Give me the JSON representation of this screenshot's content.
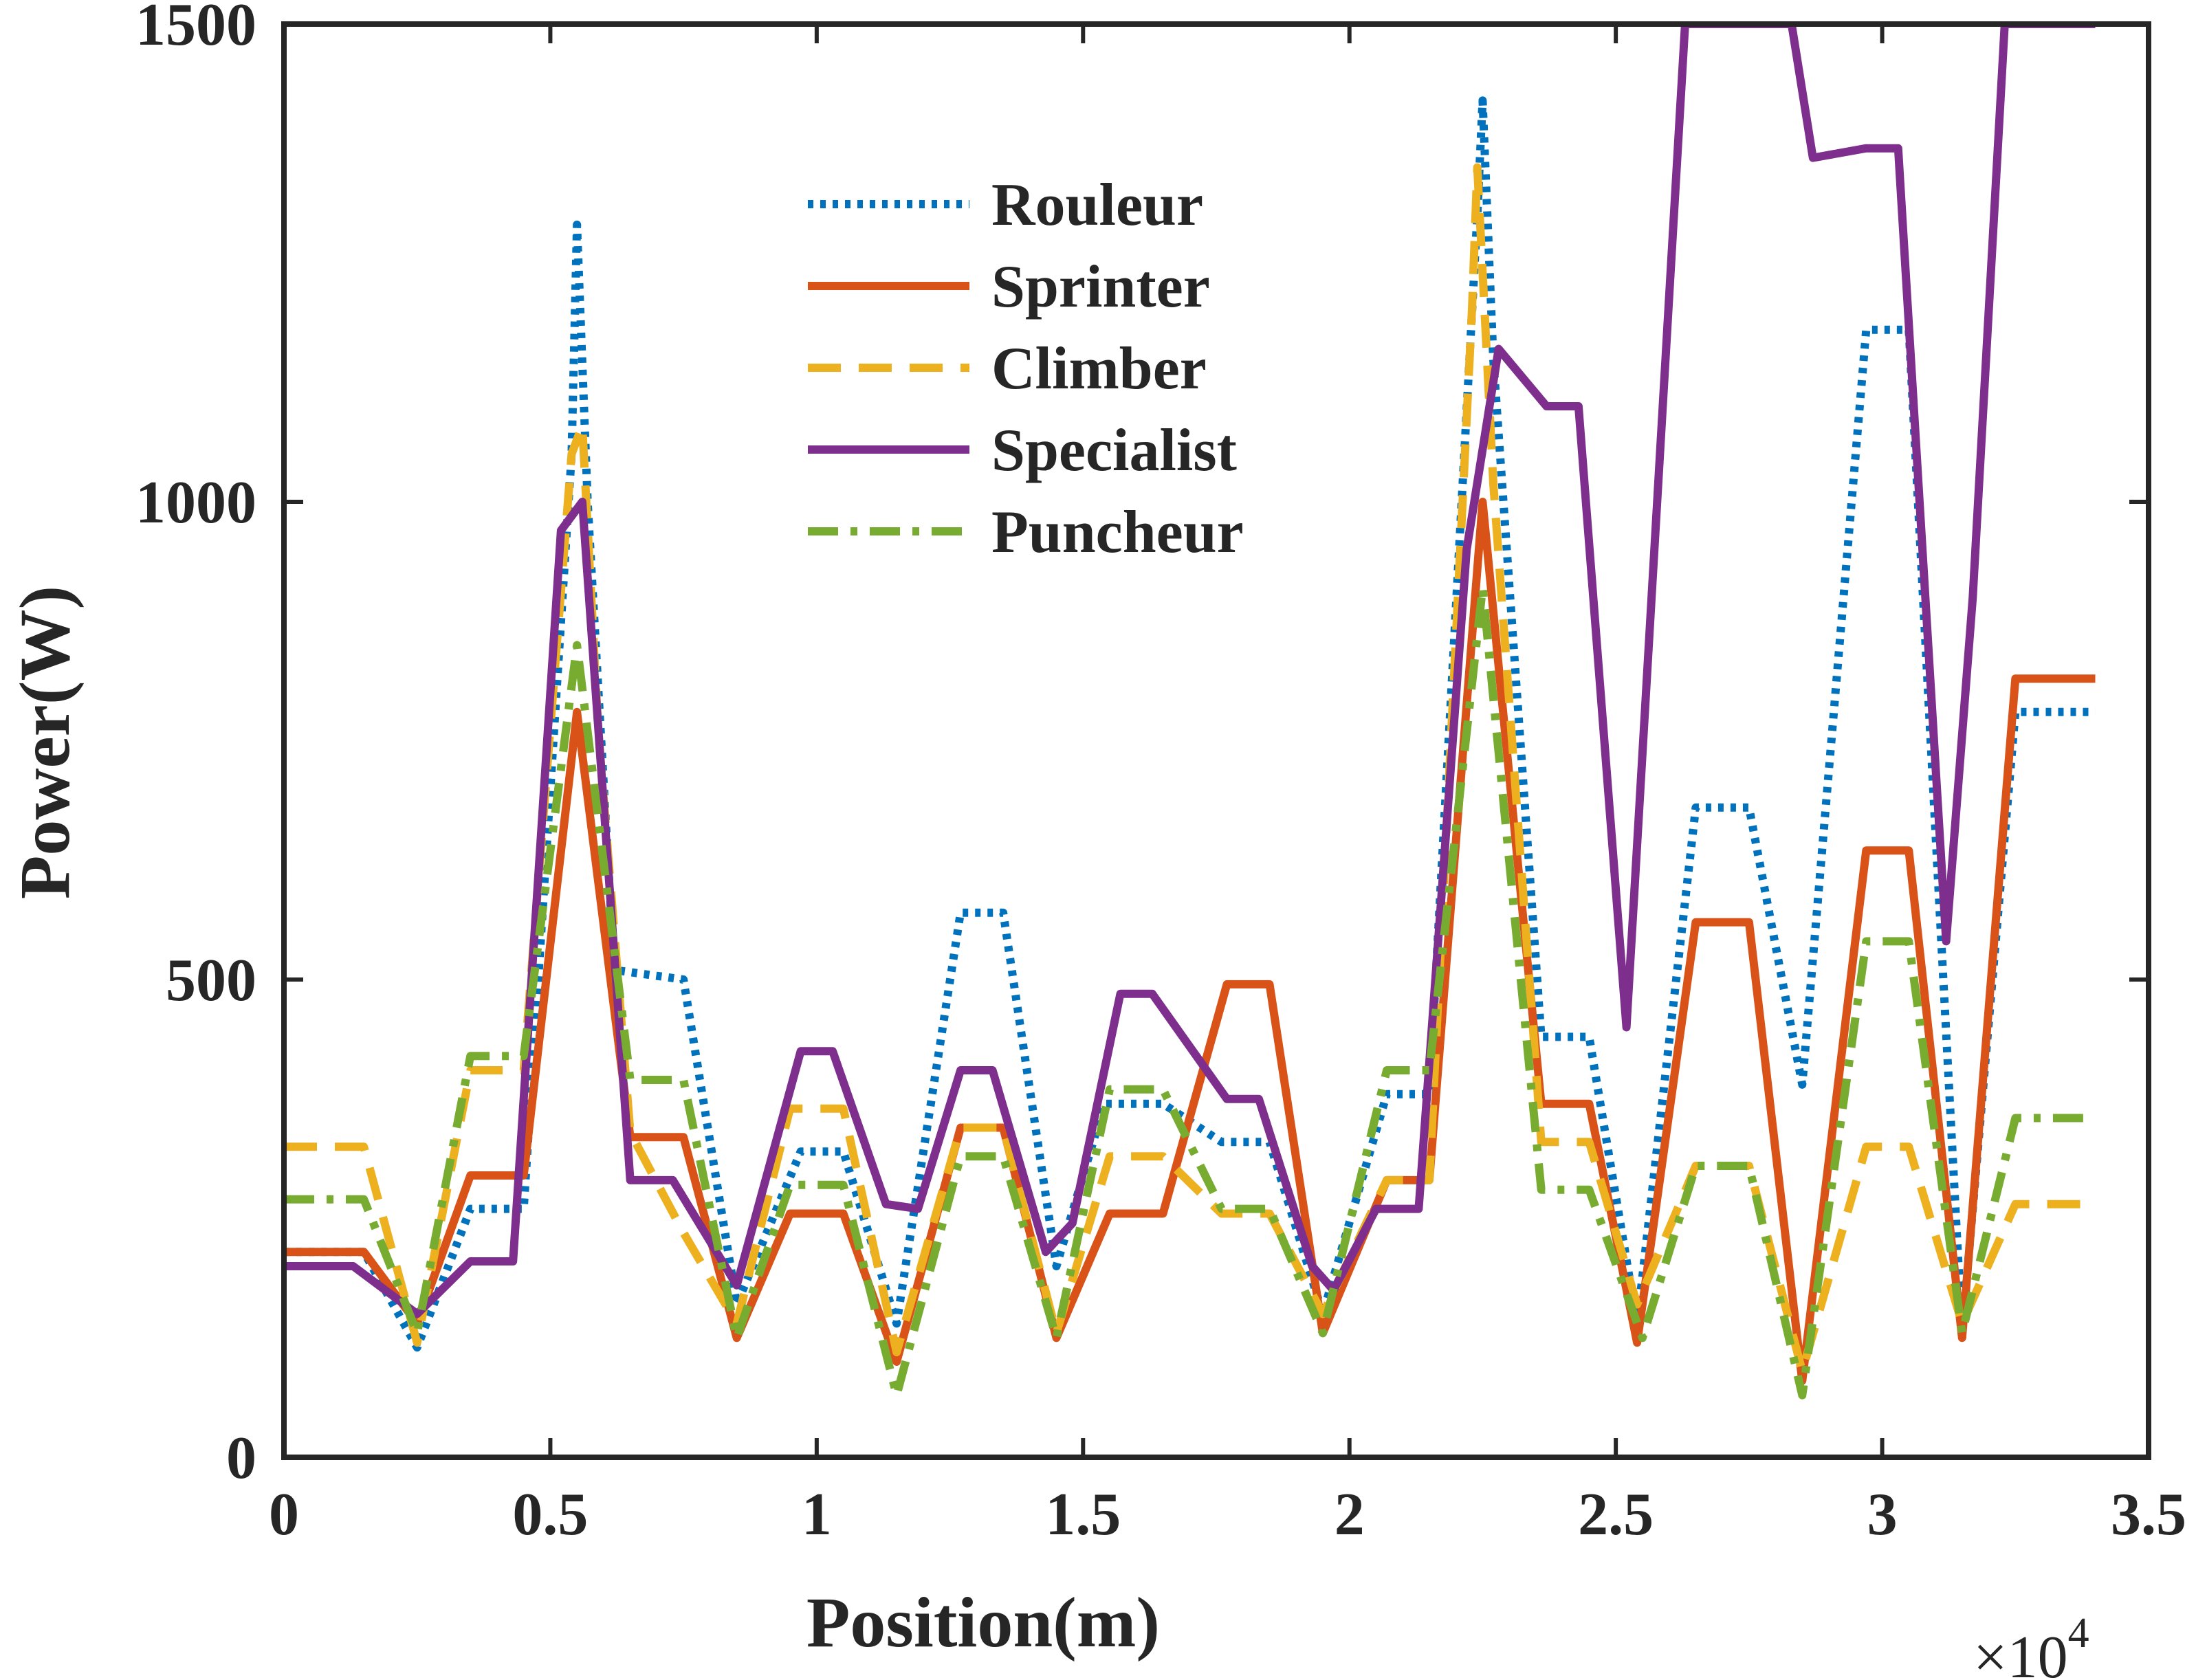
{
  "chart_data": {
    "type": "line",
    "xlabel": "Position(m)",
    "ylabel": "Power(W)",
    "x_multiplier_label": "×10",
    "x_multiplier_exponent": "4",
    "xlim": [
      0,
      35000
    ],
    "ylim": [
      0,
      1500
    ],
    "x_ticks": [
      0,
      5000,
      10000,
      15000,
      20000,
      25000,
      30000,
      35000
    ],
    "x_tick_labels": [
      "0",
      "0.5",
      "1",
      "1.5",
      "2",
      "2.5",
      "3",
      "3.5"
    ],
    "y_ticks": [
      0,
      500,
      1000,
      1500
    ],
    "y_tick_labels": [
      "0",
      "500",
      "1000",
      "1500"
    ],
    "grid": false,
    "legend_position": "top-center",
    "series": [
      {
        "name": "Rouleur",
        "color": "#0072BD",
        "style": "dotted",
        "points": [
          [
            0,
            215
          ],
          [
            1500,
            215
          ],
          [
            2500,
            115
          ],
          [
            3500,
            260
          ],
          [
            4500,
            260
          ],
          [
            5400,
            1050
          ],
          [
            5500,
            1290
          ],
          [
            5700,
            1000
          ],
          [
            6200,
            510
          ],
          [
            7500,
            500
          ],
          [
            8500,
            160
          ],
          [
            9700,
            320
          ],
          [
            10500,
            320
          ],
          [
            11500,
            140
          ],
          [
            12700,
            570
          ],
          [
            13500,
            570
          ],
          [
            14500,
            200
          ],
          [
            15400,
            370
          ],
          [
            16500,
            370
          ],
          [
            17600,
            330
          ],
          [
            18500,
            330
          ],
          [
            19500,
            150
          ],
          [
            20700,
            380
          ],
          [
            21500,
            380
          ],
          [
            22400,
            1300
          ],
          [
            22500,
            1420
          ],
          [
            22700,
            1150
          ],
          [
            23600,
            440
          ],
          [
            24500,
            440
          ],
          [
            25400,
            140
          ],
          [
            26500,
            680
          ],
          [
            27500,
            680
          ],
          [
            28500,
            390
          ],
          [
            29700,
            1180
          ],
          [
            30500,
            1180
          ],
          [
            31500,
            130
          ],
          [
            32500,
            780
          ],
          [
            34000,
            780
          ]
        ]
      },
      {
        "name": "Sprinter",
        "color": "#D95319",
        "style": "solid",
        "points": [
          [
            0,
            215
          ],
          [
            1500,
            215
          ],
          [
            2500,
            140
          ],
          [
            3500,
            295
          ],
          [
            4500,
            295
          ],
          [
            5500,
            780
          ],
          [
            6500,
            335
          ],
          [
            7500,
            335
          ],
          [
            8500,
            125
          ],
          [
            9500,
            255
          ],
          [
            10500,
            255
          ],
          [
            11500,
            100
          ],
          [
            12700,
            345
          ],
          [
            13500,
            345
          ],
          [
            14500,
            125
          ],
          [
            15500,
            255
          ],
          [
            16500,
            255
          ],
          [
            17700,
            495
          ],
          [
            18500,
            495
          ],
          [
            19500,
            130
          ],
          [
            20700,
            290
          ],
          [
            21500,
            290
          ],
          [
            22500,
            1000
          ],
          [
            23600,
            370
          ],
          [
            24500,
            370
          ],
          [
            25400,
            120
          ],
          [
            26500,
            560
          ],
          [
            27500,
            560
          ],
          [
            28500,
            80
          ],
          [
            29700,
            635
          ],
          [
            30500,
            635
          ],
          [
            31500,
            125
          ],
          [
            32500,
            815
          ],
          [
            34000,
            815
          ]
        ]
      },
      {
        "name": "Climber",
        "color": "#EDB120",
        "style": "dashed",
        "points": [
          [
            0,
            325
          ],
          [
            1500,
            325
          ],
          [
            2500,
            120
          ],
          [
            3500,
            405
          ],
          [
            4500,
            405
          ],
          [
            5400,
            1050
          ],
          [
            5600,
            1080
          ],
          [
            5900,
            760
          ],
          [
            6500,
            340
          ],
          [
            7500,
            235
          ],
          [
            8500,
            140
          ],
          [
            9500,
            365
          ],
          [
            10500,
            365
          ],
          [
            11500,
            110
          ],
          [
            12700,
            345
          ],
          [
            13500,
            345
          ],
          [
            14500,
            130
          ],
          [
            15500,
            315
          ],
          [
            16500,
            315
          ],
          [
            17600,
            255
          ],
          [
            18500,
            255
          ],
          [
            19500,
            150
          ],
          [
            20700,
            290
          ],
          [
            21500,
            290
          ],
          [
            22300,
            1200
          ],
          [
            22400,
            1350
          ],
          [
            22700,
            1020
          ],
          [
            23600,
            330
          ],
          [
            24500,
            330
          ],
          [
            25400,
            160
          ],
          [
            26500,
            305
          ],
          [
            27500,
            305
          ],
          [
            28500,
            90
          ],
          [
            29700,
            325
          ],
          [
            30500,
            325
          ],
          [
            31500,
            140
          ],
          [
            32500,
            265
          ],
          [
            34000,
            265
          ]
        ]
      },
      {
        "name": "Specialist",
        "color": "#7E2F8E",
        "style": "solid",
        "points": [
          [
            0,
            200
          ],
          [
            1300,
            200
          ],
          [
            2500,
            150
          ],
          [
            3500,
            205
          ],
          [
            4300,
            205
          ],
          [
            5200,
            970
          ],
          [
            5600,
            1000
          ],
          [
            6500,
            290
          ],
          [
            7300,
            290
          ],
          [
            8500,
            180
          ],
          [
            9700,
            425
          ],
          [
            10300,
            425
          ],
          [
            11300,
            265
          ],
          [
            11900,
            260
          ],
          [
            12700,
            405
          ],
          [
            13300,
            405
          ],
          [
            14300,
            215
          ],
          [
            14800,
            245
          ],
          [
            15700,
            485
          ],
          [
            16300,
            485
          ],
          [
            17700,
            375
          ],
          [
            18300,
            375
          ],
          [
            19300,
            200
          ],
          [
            19700,
            175
          ],
          [
            20500,
            260
          ],
          [
            21300,
            260
          ],
          [
            22200,
            950
          ],
          [
            22800,
            1160
          ],
          [
            23700,
            1100
          ],
          [
            24300,
            1100
          ],
          [
            25200,
            450
          ],
          [
            26300,
            1500
          ],
          [
            28300,
            1500
          ],
          [
            28700,
            1360
          ],
          [
            29700,
            1370
          ],
          [
            30300,
            1370
          ],
          [
            31200,
            540
          ],
          [
            31700,
            900
          ],
          [
            32300,
            1500
          ],
          [
            34000,
            1500
          ]
        ]
      },
      {
        "name": "Puncheur",
        "color": "#77AC30",
        "style": "dashdot",
        "points": [
          [
            0,
            270
          ],
          [
            1500,
            270
          ],
          [
            2500,
            130
          ],
          [
            3500,
            420
          ],
          [
            4500,
            420
          ],
          [
            5500,
            850
          ],
          [
            6500,
            395
          ],
          [
            7500,
            395
          ],
          [
            8500,
            125
          ],
          [
            9500,
            285
          ],
          [
            10500,
            285
          ],
          [
            11500,
            65
          ],
          [
            12700,
            315
          ],
          [
            13500,
            315
          ],
          [
            14500,
            125
          ],
          [
            15500,
            385
          ],
          [
            16500,
            385
          ],
          [
            17600,
            260
          ],
          [
            18500,
            260
          ],
          [
            19500,
            130
          ],
          [
            20700,
            405
          ],
          [
            21500,
            405
          ],
          [
            22500,
            910
          ],
          [
            23600,
            280
          ],
          [
            24500,
            280
          ],
          [
            25500,
            125
          ],
          [
            26500,
            305
          ],
          [
            27500,
            305
          ],
          [
            28500,
            65
          ],
          [
            29700,
            540
          ],
          [
            30500,
            540
          ],
          [
            31500,
            130
          ],
          [
            32500,
            355
          ],
          [
            34000,
            355
          ]
        ]
      }
    ]
  }
}
